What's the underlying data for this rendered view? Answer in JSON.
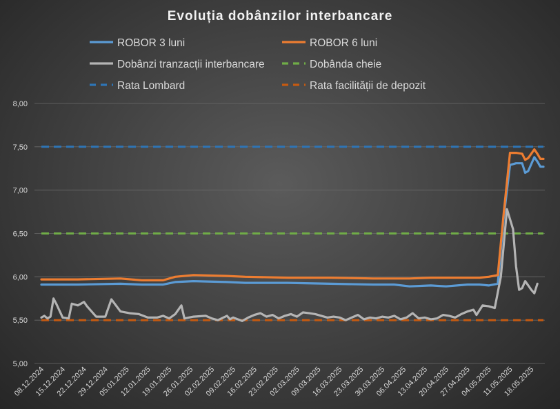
{
  "chart_data": {
    "type": "line",
    "title": "Evoluția dobânzilor interbancare",
    "xlabel": "",
    "ylabel": "",
    "ylim": [
      5.0,
      8.0
    ],
    "yticks": [
      "5,00",
      "5,50",
      "6,00",
      "6,50",
      "7,00",
      "7,50",
      "8,00"
    ],
    "x_tick_labels": [
      "08.12.2024",
      "15.12.2024",
      "22.12.2024",
      "29.12.2024",
      "05.01.2025",
      "12.01.2025",
      "19.01.2025",
      "26.01.2025",
      "02.02.2025",
      "09.02.2025",
      "16.02.2025",
      "23.02.2025",
      "02.03.2025",
      "09.03.2025",
      "16.03.2025",
      "23.03.2025",
      "30.03.2025",
      "06.04.2025",
      "13.04.2025",
      "20.04.2025",
      "27.04.2025",
      "04.05.2025",
      "11.05.2025",
      "18.05.2025"
    ],
    "x_range": [
      "2024-12-08",
      "2025-05-22"
    ],
    "grid": "horizontal",
    "legend_position": "top",
    "series": [
      {
        "name": "ROBOR 3 luni",
        "color": "#5b9bd5",
        "style": "solid",
        "points": [
          [
            "2024-12-08",
            5.91
          ],
          [
            "2024-12-20",
            5.91
          ],
          [
            "2025-01-03",
            5.92
          ],
          [
            "2025-01-10",
            5.91
          ],
          [
            "2025-01-17",
            5.91
          ],
          [
            "2025-01-21",
            5.94
          ],
          [
            "2025-01-27",
            5.95
          ],
          [
            "2025-02-07",
            5.94
          ],
          [
            "2025-02-13",
            5.93
          ],
          [
            "2025-02-27",
            5.93
          ],
          [
            "2025-03-13",
            5.92
          ],
          [
            "2025-03-27",
            5.91
          ],
          [
            "2025-04-03",
            5.91
          ],
          [
            "2025-04-08",
            5.89
          ],
          [
            "2025-04-15",
            5.9
          ],
          [
            "2025-04-20",
            5.89
          ],
          [
            "2025-04-27",
            5.91
          ],
          [
            "2025-05-01",
            5.91
          ],
          [
            "2025-05-04",
            5.9
          ],
          [
            "2025-05-07",
            5.92
          ],
          [
            "2025-05-09",
            6.7
          ],
          [
            "2025-05-11",
            7.29
          ],
          [
            "2025-05-13",
            7.31
          ],
          [
            "2025-05-15",
            7.31
          ],
          [
            "2025-05-16",
            7.2
          ],
          [
            "2025-05-17",
            7.22
          ],
          [
            "2025-05-19",
            7.38
          ],
          [
            "2025-05-20",
            7.33
          ],
          [
            "2025-05-21",
            7.27
          ],
          [
            "2025-05-22",
            7.27
          ]
        ]
      },
      {
        "name": "ROBOR 6 luni",
        "color": "#ed7d31",
        "style": "solid",
        "points": [
          [
            "2024-12-08",
            5.97
          ],
          [
            "2024-12-20",
            5.97
          ],
          [
            "2025-01-03",
            5.98
          ],
          [
            "2025-01-10",
            5.96
          ],
          [
            "2025-01-17",
            5.96
          ],
          [
            "2025-01-21",
            6.0
          ],
          [
            "2025-01-27",
            6.02
          ],
          [
            "2025-02-07",
            6.01
          ],
          [
            "2025-02-13",
            6.0
          ],
          [
            "2025-02-27",
            5.99
          ],
          [
            "2025-03-13",
            5.99
          ],
          [
            "2025-03-27",
            5.98
          ],
          [
            "2025-04-03",
            5.98
          ],
          [
            "2025-04-08",
            5.98
          ],
          [
            "2025-04-15",
            5.99
          ],
          [
            "2025-04-27",
            5.99
          ],
          [
            "2025-05-01",
            5.99
          ],
          [
            "2025-05-04",
            6.0
          ],
          [
            "2025-05-07",
            6.02
          ],
          [
            "2025-05-09",
            6.75
          ],
          [
            "2025-05-11",
            7.43
          ],
          [
            "2025-05-13",
            7.43
          ],
          [
            "2025-05-15",
            7.42
          ],
          [
            "2025-05-16",
            7.35
          ],
          [
            "2025-05-17",
            7.37
          ],
          [
            "2025-05-19",
            7.47
          ],
          [
            "2025-05-20",
            7.42
          ],
          [
            "2025-05-21",
            7.36
          ],
          [
            "2025-05-22",
            7.36
          ]
        ]
      },
      {
        "name": "Dobânzi tranzacții interbancare",
        "color": "#b4b4b4",
        "style": "solid",
        "points": [
          [
            "2024-12-08",
            5.53
          ],
          [
            "2024-12-09",
            5.55
          ],
          [
            "2024-12-10",
            5.52
          ],
          [
            "2024-12-11",
            5.54
          ],
          [
            "2024-12-12",
            5.75
          ],
          [
            "2024-12-13",
            5.68
          ],
          [
            "2024-12-15",
            5.53
          ],
          [
            "2024-12-17",
            5.52
          ],
          [
            "2024-12-18",
            5.69
          ],
          [
            "2024-12-20",
            5.67
          ],
          [
            "2024-12-22",
            5.71
          ],
          [
            "2024-12-23",
            5.66
          ],
          [
            "2024-12-26",
            5.54
          ],
          [
            "2024-12-29",
            5.54
          ],
          [
            "2024-12-31",
            5.74
          ],
          [
            "2025-01-03",
            5.6
          ],
          [
            "2025-01-06",
            5.58
          ],
          [
            "2025-01-09",
            5.57
          ],
          [
            "2025-01-12",
            5.53
          ],
          [
            "2025-01-15",
            5.53
          ],
          [
            "2025-01-17",
            5.55
          ],
          [
            "2025-01-19",
            5.52
          ],
          [
            "2025-01-21",
            5.57
          ],
          [
            "2025-01-23",
            5.67
          ],
          [
            "2025-01-24",
            5.52
          ],
          [
            "2025-01-27",
            5.54
          ],
          [
            "2025-01-31",
            5.55
          ],
          [
            "2025-02-02",
            5.52
          ],
          [
            "2025-02-04",
            5.5
          ],
          [
            "2025-02-07",
            5.55
          ],
          [
            "2025-02-08",
            5.51
          ],
          [
            "2025-02-09",
            5.53
          ],
          [
            "2025-02-12",
            5.49
          ],
          [
            "2025-02-14",
            5.53
          ],
          [
            "2025-02-16",
            5.56
          ],
          [
            "2025-02-18",
            5.58
          ],
          [
            "2025-02-20",
            5.54
          ],
          [
            "2025-02-22",
            5.56
          ],
          [
            "2025-02-24",
            5.52
          ],
          [
            "2025-02-26",
            5.55
          ],
          [
            "2025-02-28",
            5.57
          ],
          [
            "2025-03-02",
            5.54
          ],
          [
            "2025-03-04",
            5.59
          ],
          [
            "2025-03-06",
            5.58
          ],
          [
            "2025-03-08",
            5.57
          ],
          [
            "2025-03-10",
            5.55
          ],
          [
            "2025-03-12",
            5.53
          ],
          [
            "2025-03-14",
            5.54
          ],
          [
            "2025-03-16",
            5.53
          ],
          [
            "2025-03-18",
            5.5
          ],
          [
            "2025-03-20",
            5.53
          ],
          [
            "2025-03-22",
            5.56
          ],
          [
            "2025-03-24",
            5.51
          ],
          [
            "2025-03-26",
            5.53
          ],
          [
            "2025-03-28",
            5.52
          ],
          [
            "2025-03-30",
            5.54
          ],
          [
            "2025-04-01",
            5.53
          ],
          [
            "2025-04-03",
            5.55
          ],
          [
            "2025-04-05",
            5.51
          ],
          [
            "2025-04-07",
            5.53
          ],
          [
            "2025-04-09",
            5.58
          ],
          [
            "2025-04-11",
            5.52
          ],
          [
            "2025-04-13",
            5.53
          ],
          [
            "2025-04-15",
            5.51
          ],
          [
            "2025-04-17",
            5.52
          ],
          [
            "2025-04-19",
            5.56
          ],
          [
            "2025-04-21",
            5.55
          ],
          [
            "2025-04-23",
            5.53
          ],
          [
            "2025-04-25",
            5.57
          ],
          [
            "2025-04-27",
            5.6
          ],
          [
            "2025-04-29",
            5.62
          ],
          [
            "2025-04-30",
            5.56
          ],
          [
            "2025-05-02",
            5.67
          ],
          [
            "2025-05-04",
            5.66
          ],
          [
            "2025-05-06",
            5.64
          ],
          [
            "2025-05-08",
            6.0
          ],
          [
            "2025-05-10",
            6.78
          ],
          [
            "2025-05-12",
            6.55
          ],
          [
            "2025-05-13",
            6.12
          ],
          [
            "2025-05-14",
            5.85
          ],
          [
            "2025-05-15",
            5.87
          ],
          [
            "2025-05-16",
            5.95
          ],
          [
            "2025-05-18",
            5.85
          ],
          [
            "2025-05-19",
            5.81
          ],
          [
            "2025-05-20",
            5.92
          ]
        ]
      },
      {
        "name": "Dobânda cheie",
        "color": "#70ad47",
        "style": "dashed",
        "points": [
          [
            "2024-12-08",
            6.5
          ],
          [
            "2025-05-22",
            6.5
          ]
        ]
      },
      {
        "name": "Rata Lombard",
        "color": "#2e75b6",
        "style": "dashed",
        "points": [
          [
            "2024-12-08",
            7.5
          ],
          [
            "2025-05-22",
            7.5
          ]
        ]
      },
      {
        "name": "Rata facilității de depozit",
        "color": "#c55a11",
        "style": "dashed",
        "points": [
          [
            "2024-12-08",
            5.5
          ],
          [
            "2025-05-22",
            5.5
          ]
        ]
      }
    ]
  }
}
